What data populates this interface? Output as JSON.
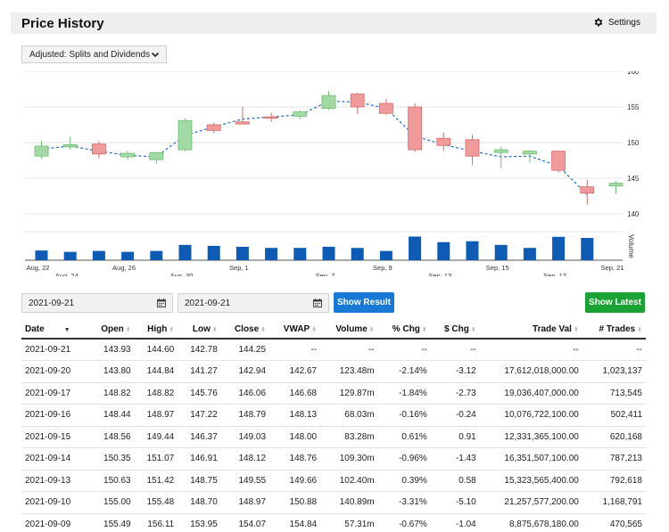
{
  "header": {
    "title": "Price History",
    "settings_label": "Settings"
  },
  "adjustment": {
    "selected": "Adjusted: Splits and Dividends"
  },
  "dates": {
    "start": "2021-09-21",
    "end": "2021-09-21"
  },
  "buttons": {
    "show_result": "Show Result",
    "show_latest": "Show Latest"
  },
  "colors": {
    "up": "#a3d9a5",
    "up_stroke": "#6bbf70",
    "down": "#f09a9a",
    "down_stroke": "#d66b6b",
    "volume": "#0d5bb5",
    "vwap": "#1f6fd1"
  },
  "chart_data": {
    "type": "candlestick",
    "ylim": [
      137.5,
      160
    ],
    "yticks": [
      140,
      145,
      150,
      155,
      160
    ],
    "volume_label": "Volume",
    "xlabels_row1": [
      "Aug, 22",
      "Aug, 26",
      "Sep, 1",
      "Sep, 9",
      "Sep, 15",
      "Sep, 21"
    ],
    "xlabels_row2": [
      "Aug, 24",
      "Aug, 30",
      "Sep, 7",
      "Sep, 13",
      "Sep, 17"
    ],
    "candles": [
      {
        "o": 148.1,
        "h": 150.2,
        "l": 147.7,
        "c": 149.5,
        "vwap": 149.1,
        "vol": 0.42
      },
      {
        "o": 149.4,
        "h": 150.8,
        "l": 149.0,
        "c": 149.7,
        "vwap": 149.5,
        "vol": 0.36
      },
      {
        "o": 149.8,
        "h": 150.2,
        "l": 147.8,
        "c": 148.4,
        "vwap": 148.8,
        "vol": 0.4
      },
      {
        "o": 148.0,
        "h": 148.9,
        "l": 147.6,
        "c": 148.5,
        "vwap": 148.2,
        "vol": 0.36
      },
      {
        "o": 147.6,
        "h": 148.6,
        "l": 147.0,
        "c": 148.6,
        "vwap": 148.0,
        "vol": 0.4
      },
      {
        "o": 149.0,
        "h": 153.4,
        "l": 148.8,
        "c": 153.1,
        "vwap": 151.0,
        "vol": 0.66
      },
      {
        "o": 152.5,
        "h": 152.8,
        "l": 151.3,
        "c": 151.7,
        "vwap": 152.2,
        "vol": 0.62
      },
      {
        "o": 152.9,
        "h": 155.0,
        "l": 152.6,
        "c": 152.6,
        "vwap": 153.3,
        "vol": 0.58
      },
      {
        "o": 153.6,
        "h": 154.2,
        "l": 152.9,
        "c": 153.5,
        "vwap": 153.6,
        "vol": 0.53
      },
      {
        "o": 153.7,
        "h": 154.5,
        "l": 153.3,
        "c": 154.3,
        "vwap": 153.9,
        "vol": 0.53
      },
      {
        "o": 154.8,
        "h": 157.2,
        "l": 154.6,
        "c": 156.6,
        "vwap": 155.8,
        "vol": 0.58
      },
      {
        "o": 156.8,
        "h": 157.0,
        "l": 154.0,
        "c": 155.0,
        "vwap": 155.7,
        "vol": 0.53
      },
      {
        "o": 155.5,
        "h": 156.1,
        "l": 153.9,
        "c": 154.1,
        "vwap": 154.8,
        "vol": 0.4
      },
      {
        "o": 155.0,
        "h": 155.5,
        "l": 148.7,
        "c": 149.0,
        "vwap": 150.9,
        "vol": 1.02
      },
      {
        "o": 150.6,
        "h": 151.4,
        "l": 148.8,
        "c": 149.6,
        "vwap": 149.7,
        "vol": 0.78
      },
      {
        "o": 150.4,
        "h": 151.1,
        "l": 146.9,
        "c": 148.1,
        "vwap": 148.8,
        "vol": 0.82
      },
      {
        "o": 148.6,
        "h": 149.4,
        "l": 146.4,
        "c": 149.0,
        "vwap": 148.0,
        "vol": 0.66
      },
      {
        "o": 148.4,
        "h": 149.0,
        "l": 147.2,
        "c": 148.8,
        "vwap": 148.1,
        "vol": 0.53
      },
      {
        "o": 148.8,
        "h": 148.8,
        "l": 145.8,
        "c": 146.1,
        "vwap": 146.7,
        "vol": 1.01
      },
      {
        "o": 143.8,
        "h": 144.8,
        "l": 141.3,
        "c": 142.9,
        "vwap": 142.7,
        "vol": 0.96
      },
      {
        "o": 143.9,
        "h": 144.6,
        "l": 142.8,
        "c": 144.3,
        "vwap": null,
        "vol": 0
      }
    ]
  },
  "table": {
    "headers": [
      "Date",
      "Open",
      "High",
      "Low",
      "Close",
      "VWAP",
      "Volume",
      "% Chg",
      "$ Chg",
      "Trade Val",
      "# Trades"
    ],
    "rows": [
      [
        "2021-09-21",
        "143.93",
        "144.60",
        "142.78",
        "144.25",
        "--",
        "--",
        "--",
        "--",
        "--",
        "--"
      ],
      [
        "2021-09-20",
        "143.80",
        "144.84",
        "141.27",
        "142.94",
        "142.67",
        "123.48m",
        "-2.14%",
        "-3.12",
        "17,612,018,000.00",
        "1,023,137"
      ],
      [
        "2021-09-17",
        "148.82",
        "148.82",
        "145.76",
        "146.06",
        "146.68",
        "129.87m",
        "-1.84%",
        "-2.73",
        "19,036,407,000.00",
        "713,545"
      ],
      [
        "2021-09-16",
        "148.44",
        "148.97",
        "147.22",
        "148.79",
        "148.13",
        "68.03m",
        "-0.16%",
        "-0.24",
        "10,076,722,100.00",
        "502,411"
      ],
      [
        "2021-09-15",
        "148.56",
        "149.44",
        "146.37",
        "149.03",
        "148.00",
        "83.28m",
        "0.61%",
        "0.91",
        "12,331,365,100.00",
        "620,168"
      ],
      [
        "2021-09-14",
        "150.35",
        "151.07",
        "146.91",
        "148.12",
        "148.76",
        "109.30m",
        "-0.96%",
        "-1.43",
        "16,351,507,100.00",
        "787,213"
      ],
      [
        "2021-09-13",
        "150.63",
        "151.42",
        "148.75",
        "149.55",
        "149.66",
        "102.40m",
        "0.39%",
        "0.58",
        "15,323,565,400.00",
        "792,618"
      ],
      [
        "2021-09-10",
        "155.00",
        "155.48",
        "148.70",
        "148.97",
        "150.88",
        "140.89m",
        "-3.31%",
        "-5.10",
        "21,257,577,200.00",
        "1,168,791"
      ],
      [
        "2021-09-09",
        "155.49",
        "156.11",
        "153.95",
        "154.07",
        "154.84",
        "57.31m",
        "-0.67%",
        "-1.04",
        "8,875,678,180.00",
        "470,565"
      ]
    ]
  }
}
